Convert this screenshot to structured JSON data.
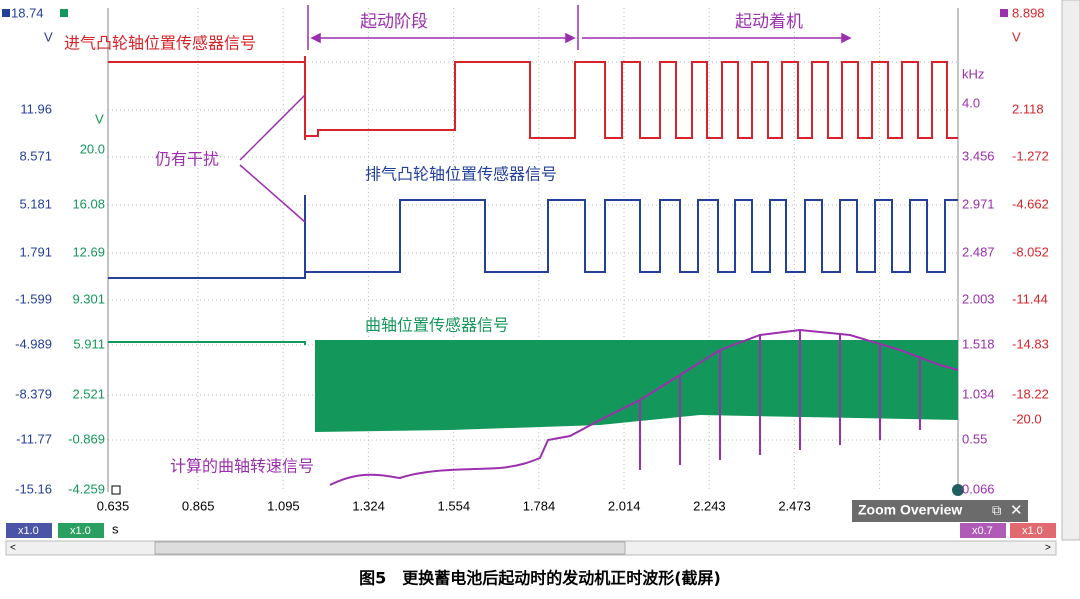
{
  "window": {
    "left_axis_a": {
      "top": "18.74",
      "unit": "V",
      "ticks": [
        "11.96",
        "8.571",
        "5.181",
        "1.791",
        "-1.599",
        "-4.989",
        "-8.379",
        "-11.77",
        "-15.16"
      ]
    },
    "left_axis_b": {
      "unit": "V",
      "ticks": [
        "20.0",
        "16.08",
        "12.69",
        "9.301",
        "5.911",
        "2.521",
        "-0.869",
        "-4.259"
      ]
    },
    "right_axis_c": {
      "top": "8.898",
      "unit": "V",
      "ticks": [
        "2.118",
        "-1.272",
        "-4.662",
        "-8.052",
        "-11.44",
        "-14.83",
        "-18.22",
        "-20.0"
      ]
    },
    "right_axis_d": {
      "unit": "kHz",
      "ticks": [
        "4.0",
        "3.456",
        "2.971",
        "2.487",
        "2.003",
        "1.518",
        "1.034",
        "0.55",
        "0.066"
      ]
    },
    "x_axis": {
      "ticks": [
        "0.635",
        "0.865",
        "1.095",
        "1.324",
        "1.554",
        "1.784",
        "2.014",
        "2.243",
        "2.473"
      ],
      "unit": "s"
    },
    "annotations": {
      "phase_start": "起动阶段",
      "phase_run": "起动着机",
      "intake": "进气凸轮轴位置传感器信号",
      "interference": "仍有干扰",
      "exhaust": "排气凸轮轴位置传感器信号",
      "crank": "曲轴位置传感器信号",
      "rpm": "计算的曲轴转速信号"
    },
    "zoom_overview": "Zoom Overview",
    "scale_buttons": {
      "a": "x1.0",
      "b": "x1.0",
      "d": "x0.7",
      "c": "x1.0"
    },
    "caption": "图5　更换蓄电池后起动时的发动机正时波形(截屏)"
  }
}
